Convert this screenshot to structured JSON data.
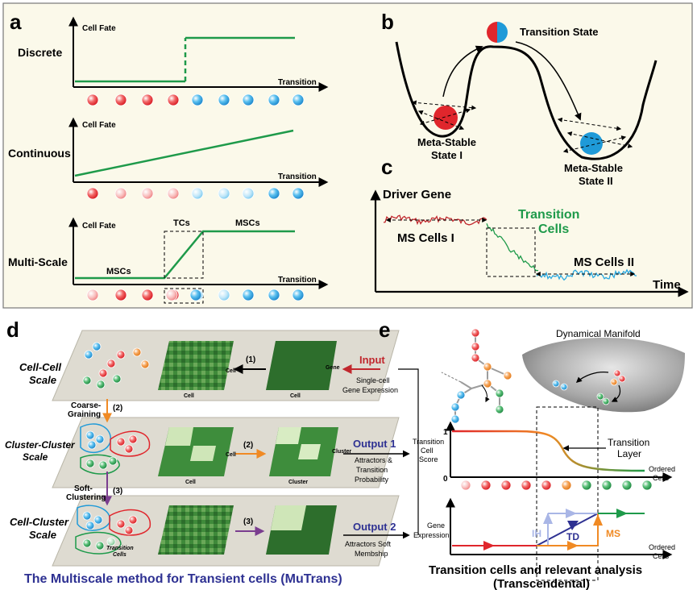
{
  "panels": {
    "a": "a",
    "b": "b",
    "c": "c",
    "d": "d",
    "e": "e"
  },
  "panel_a": {
    "rows": [
      {
        "name": "Discrete",
        "ylabel": "Cell Fate",
        "xlabel": "Transition"
      },
      {
        "name": "Continuous",
        "ylabel": "Cell Fate",
        "xlabel": "Transition"
      },
      {
        "name": "Multi-Scale",
        "ylabel": "Cell Fate",
        "xlabel": "Transition",
        "segments": [
          "MSCs",
          "TCs",
          "MSCs"
        ]
      }
    ]
  },
  "panel_b": {
    "transition_state": "Transition State",
    "state1": [
      "Meta-Stable",
      "State I"
    ],
    "state2": [
      "Meta-Stable",
      "State II"
    ]
  },
  "panel_c": {
    "ylabel": "Driver Gene",
    "xlabel": "Time",
    "ms1": "MS Cells I",
    "transition": [
      "Transition",
      "Cells"
    ],
    "ms2": "MS Cells II"
  },
  "panel_d": {
    "layers": [
      {
        "title": [
          "Cell-Cell",
          "Scale"
        ],
        "step": "(1)",
        "matrix_label": "Cell"
      },
      {
        "title": [
          "Cluster-Cluster",
          "Scale"
        ],
        "step": "(2)",
        "matrix_label": "Cluster"
      },
      {
        "title": [
          "Cell-Cluster",
          "Scale"
        ],
        "step": "(3)",
        "matrix_label": ""
      }
    ],
    "arrows": [
      {
        "num": "(2)",
        "label": [
          "Coarse-",
          "Graining"
        ]
      },
      {
        "num": "(3)",
        "label": [
          "Soft-",
          "Clustering"
        ]
      }
    ],
    "axis_cell": "Cell",
    "axis_gene": "Gene",
    "axis_cluster": "Cluster",
    "transition_cells": [
      "Transition",
      "Cells"
    ],
    "input": {
      "title": "Input",
      "desc": [
        "Single-cell",
        "Gene Expression"
      ]
    },
    "output1": {
      "title": "Output 1",
      "desc": [
        "Attractors &",
        "Transition",
        "Probability"
      ]
    },
    "output2": {
      "title": "Output 2",
      "desc": [
        "Attractors Soft",
        "Membship"
      ]
    },
    "caption": "The Multiscale method for Transient cells (MuTrans)"
  },
  "panel_e": {
    "manifold_title": "Dynamical Manifold",
    "score_ylabel": [
      "Transition",
      "Cell",
      "Score"
    ],
    "score_ticks": [
      "1",
      "0"
    ],
    "transition_layer": [
      "Transition",
      "Layer"
    ],
    "ordered_cells": [
      "Ordered",
      "Cells"
    ],
    "gene_ylabel": [
      "Gene",
      "Expression"
    ],
    "tags": [
      "IH",
      "TD",
      "MS"
    ],
    "caption": [
      "Transition cells and relevant analysis",
      "(Transcendental)"
    ]
  },
  "colors": {
    "green": "#1e9a4a",
    "red": "#e0262c",
    "blue": "#1f9ad8",
    "orange": "#f08a24",
    "purple": "#7a3d8f",
    "navy": "#2e3192",
    "panel_bg": "#fbf9ea"
  }
}
